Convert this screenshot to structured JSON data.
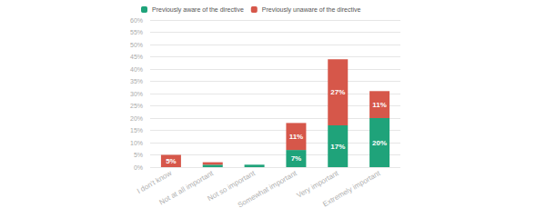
{
  "chart_data": {
    "type": "bar",
    "categories": [
      "I don't know",
      "Not at all important",
      "Not so important",
      "Somewhat important",
      "Very important",
      "Extremely important"
    ],
    "series": [
      {
        "name": "Previously aware of the directive",
        "color": "#1fa37a",
        "values": [
          0,
          1,
          1,
          7,
          17,
          20
        ],
        "value_labels": [
          null,
          null,
          null,
          "7%",
          "17%",
          "20%"
        ]
      },
      {
        "name": "Previously unaware of the directive",
        "color": "#d6574a",
        "values": [
          5,
          1,
          0,
          11,
          27,
          11
        ],
        "value_labels": [
          "5%",
          null,
          null,
          "11%",
          "27%",
          "11%"
        ]
      }
    ],
    "ylim": [
      0,
      60
    ],
    "yticks": [
      {
        "value": 0,
        "label": "0%"
      },
      {
        "value": 5,
        "label": "5%"
      },
      {
        "value": 10,
        "label": "10%"
      },
      {
        "value": 15,
        "label": "15%"
      },
      {
        "value": 20,
        "label": "20%"
      },
      {
        "value": 25,
        "label": "25%"
      },
      {
        "value": 30,
        "label": "30%"
      },
      {
        "value": 35,
        "label": "35%"
      },
      {
        "value": 40,
        "label": "40%"
      },
      {
        "value": 45,
        "label": "45%"
      },
      {
        "value": 50,
        "label": "50%"
      },
      {
        "value": 55,
        "label": "55%"
      },
      {
        "value": 60,
        "label": "60%"
      }
    ],
    "grid": true,
    "stacked": true,
    "data_labels": true,
    "legend": "top-left"
  }
}
